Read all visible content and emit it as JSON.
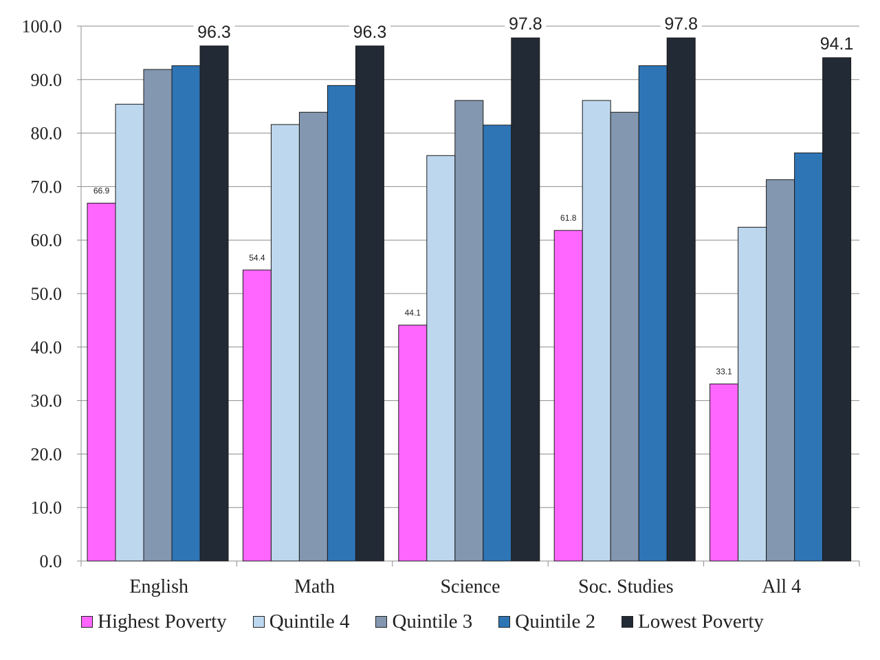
{
  "chart_data": {
    "type": "bar",
    "categories": [
      "English",
      "Math",
      "Science",
      "Soc. Studies",
      "All 4"
    ],
    "series": [
      {
        "name": "Highest Poverty",
        "color": "#ff66ff",
        "values": [
          66.9,
          54.4,
          44.1,
          61.8,
          33.1
        ],
        "labels": [
          "66.9",
          "54.4",
          "44.1",
          "61.8",
          "33.1"
        ]
      },
      {
        "name": "Quintile 4",
        "color": "#bdd7ee",
        "values": [
          85.4,
          81.6,
          75.8,
          86.1,
          62.4
        ]
      },
      {
        "name": "Quintile 3",
        "color": "#8497b0",
        "values": [
          91.9,
          83.9,
          86.1,
          83.9,
          71.3
        ]
      },
      {
        "name": "Quintile 2",
        "color": "#2e75b6",
        "values": [
          92.6,
          88.9,
          81.5,
          92.6,
          76.3
        ]
      },
      {
        "name": "Lowest Poverty",
        "color": "#222a35",
        "values": [
          96.3,
          96.3,
          97.8,
          97.8,
          94.1
        ],
        "labels": [
          "96.3",
          "96.3",
          "97.8",
          "97.8",
          "94.1"
        ]
      }
    ],
    "y_ticks": [
      "0.0",
      "10.0",
      "20.0",
      "30.0",
      "40.0",
      "50.0",
      "60.0",
      "70.0",
      "80.0",
      "90.0",
      "100.0"
    ],
    "ylim": [
      0,
      100
    ],
    "grid": true,
    "legend": "bottom"
  }
}
